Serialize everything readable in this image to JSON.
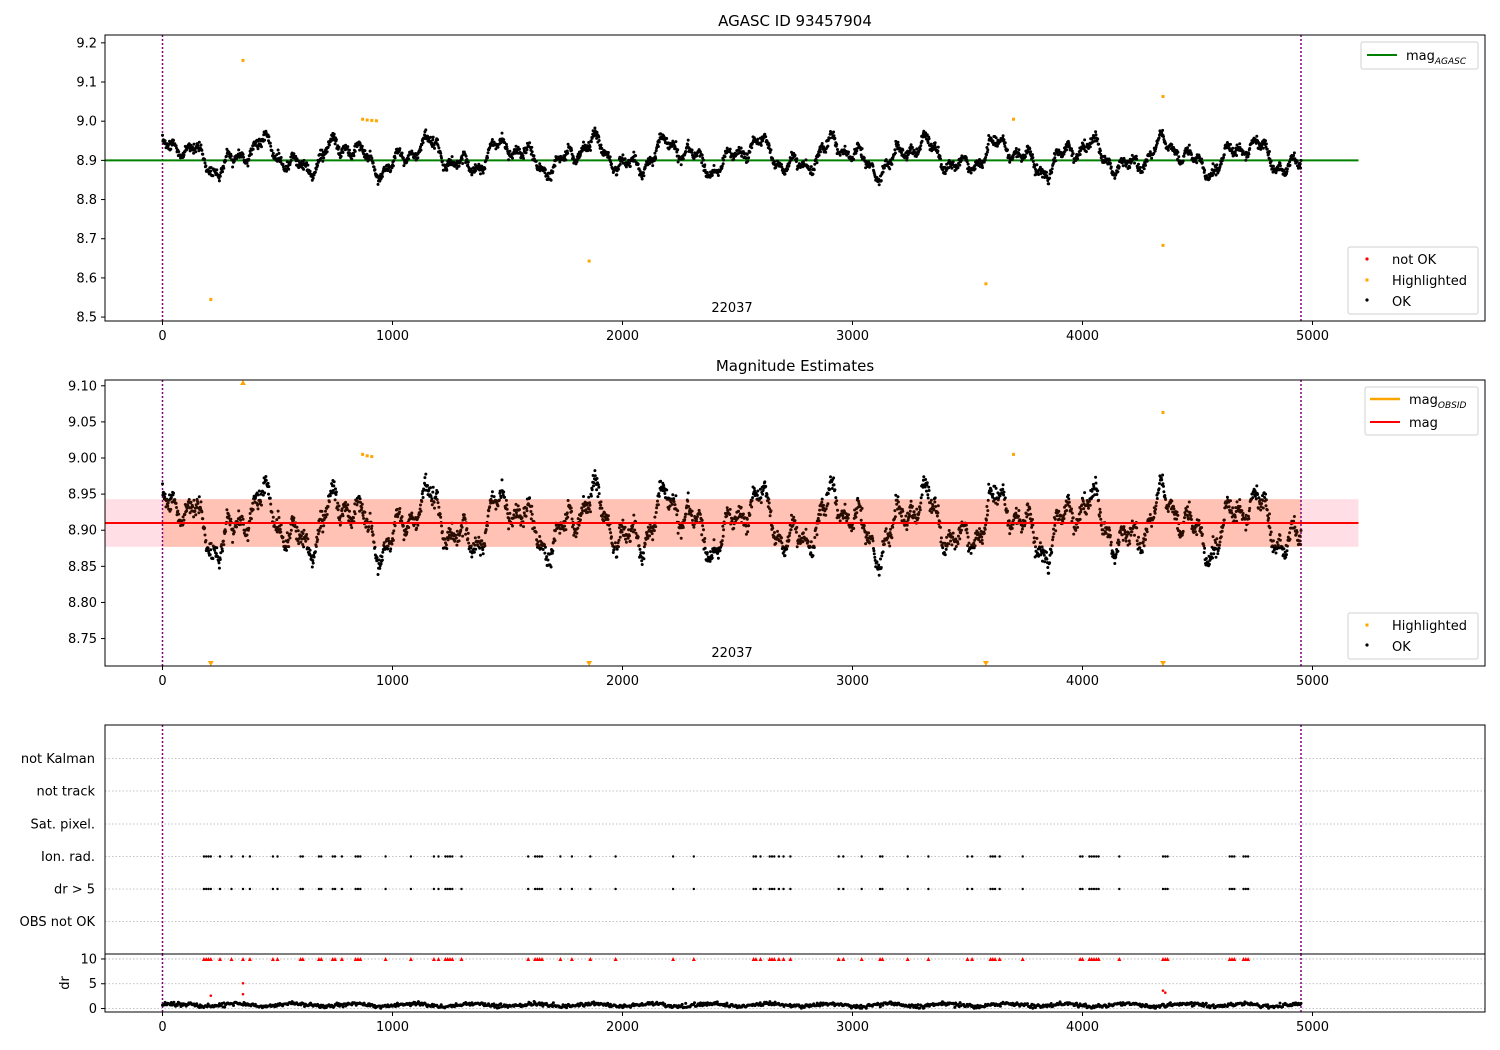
{
  "colors": {
    "ok": "#000000",
    "highlighted": "#ffa500",
    "not_ok": "#ff0000",
    "agasc_line": "#008000",
    "obsid_mag": "#ffa500",
    "mag_line": "#ff0000",
    "mag_band": "#ffc0cb",
    "obs_band": "#ffa07a",
    "obs_boundary": "#800080",
    "grid": "#b0b0b0"
  },
  "chart_data": [
    {
      "type": "scatter",
      "title": "AGASC ID 93457904",
      "xlim": [
        -250,
        5750
      ],
      "ylim": [
        8.49,
        9.22
      ],
      "x_ticks": [
        0,
        1000,
        2000,
        3000,
        4000,
        5000
      ],
      "y_ticks": [
        8.5,
        8.6,
        8.7,
        8.8,
        8.9,
        9.0,
        9.1,
        9.2
      ],
      "y_tick_labels": [
        "8.5",
        "8.6",
        "8.7",
        "8.8",
        "8.9",
        "9.0",
        "9.1",
        "9.2"
      ],
      "obs_boundaries": [
        0,
        4950
      ],
      "obsid_label": {
        "text": "22037",
        "x": 2475,
        "y": 8.51
      },
      "mag_agasc": {
        "label": "mag",
        "subscript": "AGASC",
        "value": 8.9,
        "x_range": [
          -250,
          5200
        ]
      },
      "legend_lines": {
        "position": "upper right"
      },
      "legend_points": {
        "position": "lower right",
        "entries": [
          "not OK",
          "Highlighted",
          "OK"
        ]
      },
      "highlighted_points": [
        [
          210,
          8.545
        ],
        [
          350,
          9.155
        ],
        [
          870,
          9.005
        ],
        [
          890,
          9.003
        ],
        [
          910,
          9.002
        ],
        [
          930,
          9.001
        ],
        [
          1855,
          8.643
        ],
        [
          3580,
          8.585
        ],
        [
          3700,
          9.005
        ],
        [
          4350,
          9.063
        ],
        [
          4350,
          8.683
        ]
      ],
      "ok_series": {
        "n_points": 2600,
        "x_range": [
          0,
          4950
        ],
        "mean": 8.91,
        "min": 8.836,
        "max": 9.0
      }
    },
    {
      "type": "scatter",
      "title": "Magnitude Estimates",
      "xlim": [
        -250,
        5750
      ],
      "ylim": [
        8.712,
        9.108
      ],
      "x_ticks": [
        0,
        1000,
        2000,
        3000,
        4000,
        5000
      ],
      "y_ticks": [
        8.75,
        8.8,
        8.85,
        8.9,
        8.95,
        9.0,
        9.05,
        9.1
      ],
      "y_tick_labels": [
        "8.75",
        "8.80",
        "8.85",
        "8.90",
        "8.95",
        "9.00",
        "9.05",
        "9.10"
      ],
      "obs_boundaries": [
        0,
        4950
      ],
      "obsid_label": {
        "text": "22037",
        "x": 2475,
        "y": 8.725
      },
      "mag": {
        "label": "mag",
        "value": 8.91,
        "band": [
          8.877,
          8.943
        ],
        "x_range": [
          -250,
          5200
        ]
      },
      "mag_obsid": {
        "label": "mag",
        "subscript": "OBSID",
        "value": 8.91,
        "band": [
          8.877,
          8.943
        ],
        "x_range": [
          0,
          4950
        ]
      },
      "legend_lines": {
        "position": "upper right"
      },
      "legend_points": {
        "position": "lower right",
        "entries": [
          "Highlighted",
          "OK"
        ]
      },
      "highlighted_points": [
        [
          870,
          9.005
        ],
        [
          890,
          9.003
        ],
        [
          910,
          9.002
        ],
        [
          3700,
          9.005
        ],
        [
          4350,
          9.063
        ]
      ],
      "out_of_range_markers": [
        {
          "x": 350,
          "dir": "up"
        },
        {
          "x": 210,
          "dir": "down"
        },
        {
          "x": 1855,
          "dir": "down"
        },
        {
          "x": 3580,
          "dir": "down"
        },
        {
          "x": 4350,
          "dir": "down"
        }
      ]
    },
    {
      "type": "scatter",
      "xlim": [
        -250,
        5750
      ],
      "categories": [
        "not Kalman",
        "not track",
        "Sat. pixel.",
        "Ion. rad.",
        "dr > 5",
        "OBS not OK"
      ],
      "obs_boundaries": [
        0,
        4950
      ],
      "flag_x": [
        180,
        190,
        200,
        210,
        250,
        300,
        350,
        380,
        480,
        500,
        600,
        610,
        680,
        690,
        740,
        750,
        780,
        840,
        850,
        860,
        970,
        1080,
        1180,
        1200,
        1230,
        1240,
        1250,
        1260,
        1300,
        1590,
        1620,
        1630,
        1640,
        1650,
        1730,
        1780,
        1860,
        1970,
        2220,
        2310,
        2570,
        2580,
        2600,
        2640,
        2650,
        2660,
        2680,
        2700,
        2730,
        2940,
        2960,
        3040,
        3120,
        3130,
        3240,
        3330,
        3500,
        3520,
        3600,
        3610,
        3620,
        3640,
        3740,
        3990,
        4000,
        4030,
        4040,
        4050,
        4060,
        4070,
        4160,
        4350,
        4360,
        4370,
        4640,
        4650,
        4660,
        4700,
        4710,
        4720
      ]
    },
    {
      "type": "scatter",
      "ylabel": "dr",
      "xlim": [
        -250,
        5750
      ],
      "ylim": [
        -0.7,
        11.0
      ],
      "x_ticks": [
        0,
        1000,
        2000,
        3000,
        4000,
        5000
      ],
      "y_ticks": [
        0,
        5,
        10
      ],
      "y_tick_labels": [
        "0",
        "5",
        "10"
      ],
      "obs_boundaries": [
        0,
        4950
      ],
      "capped_value": 10,
      "outliers": [
        [
          210,
          2.6
        ],
        [
          350,
          5.1
        ],
        [
          350,
          2.9
        ],
        [
          4350,
          3.6
        ],
        [
          4360,
          3.2
        ]
      ],
      "dr_series": {
        "n_points": 1300,
        "mean": 0.7
      }
    }
  ]
}
